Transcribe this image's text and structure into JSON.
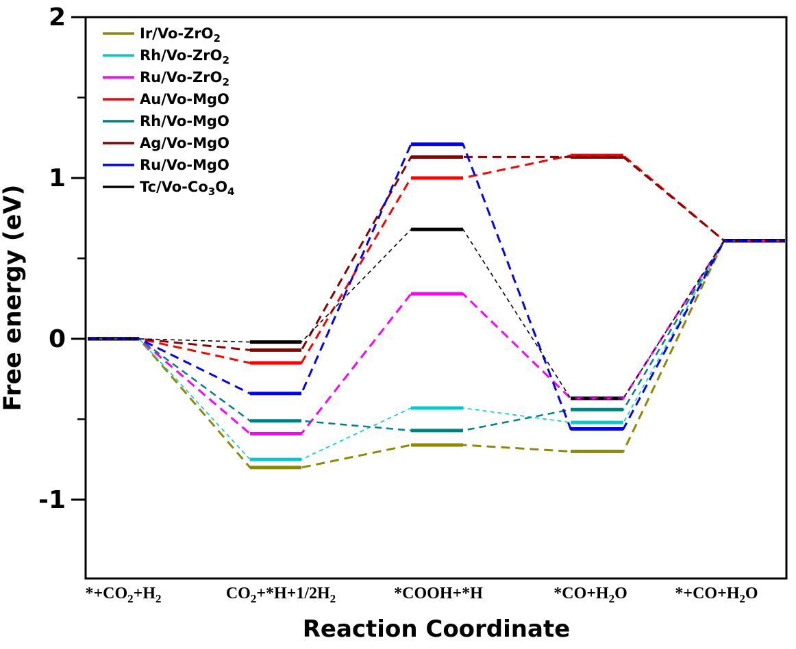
{
  "chart_data": {
    "type": "line",
    "subtype": "free-energy-diagram",
    "title": "",
    "xlabel": "Reaction Coordinate",
    "ylabel": "Free energy (eV)",
    "categories": [
      "*+CO_2+H_2",
      "CO_2+*H+1/2H_2",
      "*COOH+*H",
      "*CO+H_2O",
      "*+CO+H_2O"
    ],
    "ylim": [
      -1.49,
      2.0
    ],
    "yticks_major": [
      2,
      1,
      0,
      -1
    ],
    "yticks_minor": [
      1.5,
      0.5,
      -0.5
    ],
    "grid": false,
    "legend_position": "top-left",
    "axis_color": "#000000",
    "background_color": "#FFFFFF",
    "level_style": "solid-bars",
    "connector_style": "dashed",
    "series": [
      {
        "id": "ir-vo-zro2",
        "label": "Ir/Vo-ZrO_2",
        "color": "#8B8B00",
        "line": "thick",
        "values": [
          0.0,
          -0.8,
          -0.66,
          -0.7,
          0.61
        ]
      },
      {
        "id": "rh-vo-zro2",
        "label": "Rh/Vo-ZrO_2",
        "color": "#00CCCC",
        "line": "thin",
        "values": [
          0.0,
          -0.75,
          -0.43,
          -0.52,
          0.61
        ]
      },
      {
        "id": "ru-vo-zro2",
        "label": "Ru/Vo-ZrO_2",
        "color": "#FF00FF",
        "line": "thick",
        "values": [
          0.0,
          -0.59,
          0.28,
          -0.37,
          0.61
        ]
      },
      {
        "id": "au-vo-mgo",
        "label": "Au/Vo-MgO",
        "color": "#FF0000",
        "line": "thick",
        "values": [
          0.0,
          -0.15,
          1.0,
          1.14,
          0.61
        ]
      },
      {
        "id": "rh-vo-mgo",
        "label": "Rh/Vo-MgO",
        "color": "#008080",
        "line": "medium",
        "values": [
          0.0,
          -0.51,
          -0.57,
          -0.44,
          0.61
        ]
      },
      {
        "id": "ag-vo-mgo",
        "label": "Ag/Vo-MgO",
        "color": "#8B0000",
        "line": "thick",
        "values": [
          0.0,
          -0.07,
          1.13,
          1.13,
          0.61
        ]
      },
      {
        "id": "ru-vo-mgo",
        "label": "Ru/Vo-MgO",
        "color": "#0000FF",
        "line": "thick",
        "values": [
          0.0,
          -0.34,
          1.21,
          -0.56,
          0.61
        ]
      },
      {
        "id": "tc-vo-co3o4",
        "label": "Tc/Vo-Co_3O_4",
        "color": "#000000",
        "line": "thin",
        "values": [
          0.0,
          -0.02,
          0.68,
          -0.37,
          0.61
        ]
      }
    ]
  }
}
